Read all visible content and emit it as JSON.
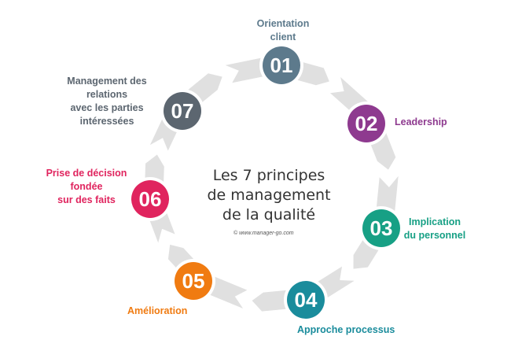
{
  "center": {
    "line1": "Les 7 principes",
    "line2": "de management",
    "line3": "de la qualité",
    "credit": "© www.manager-go.com"
  },
  "ring_color": "#e0e0e0",
  "principles": [
    {
      "number": "01",
      "label": [
        "Orientation",
        "client"
      ],
      "color": "#5d7a8c"
    },
    {
      "number": "02",
      "label": [
        "Leadership"
      ],
      "color": "#8e3a8f"
    },
    {
      "number": "03",
      "label": [
        "Implication",
        "du personnel"
      ],
      "color": "#17a085"
    },
    {
      "number": "04",
      "label": [
        "Approche processus"
      ],
      "color": "#1a8c9c"
    },
    {
      "number": "05",
      "label": [
        "Amélioration"
      ],
      "color": "#f07b11"
    },
    {
      "number": "06",
      "label": [
        "Prise de décision",
        "fondée",
        "sur des faits"
      ],
      "color": "#e0245e"
    },
    {
      "number": "07",
      "label": [
        "Management des",
        "relations",
        "avec les parties",
        "intéressées"
      ],
      "color": "#5c6670"
    }
  ]
}
